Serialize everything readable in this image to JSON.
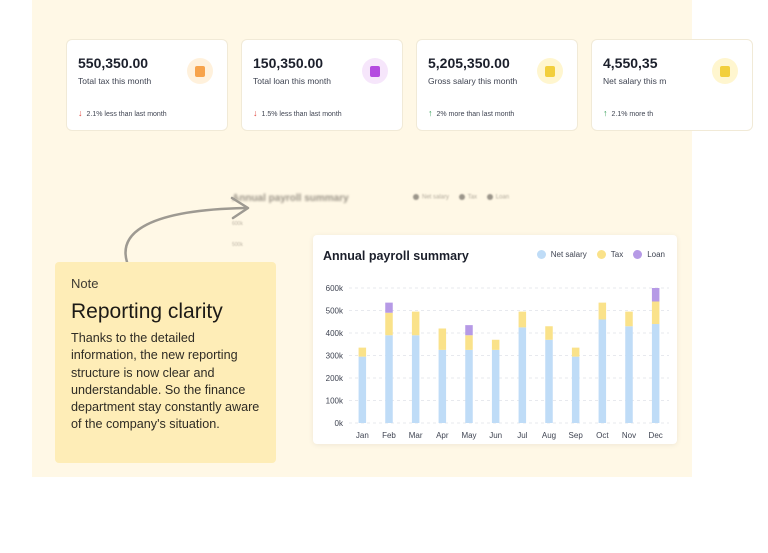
{
  "cards": [
    {
      "value": "550,350.00",
      "label": "Total tax this month",
      "change": "2.1% less than last month",
      "direction": "down",
      "icon": "document-icon",
      "icon_color": "#f7a34b",
      "icon_bg": "#fff1dc"
    },
    {
      "value": "150,350.00",
      "label": "Total loan this month",
      "change": "1.5% less than last month",
      "direction": "down",
      "icon": "document-icon",
      "icon_color": "#b44ae0",
      "icon_bg": "#f6e6fb"
    },
    {
      "value": "5,205,350.00",
      "label": "Gross salary this month",
      "change": "2% more than last month",
      "direction": "up",
      "icon": "document-icon",
      "icon_color": "#f2cf3c",
      "icon_bg": "#fff6cf"
    },
    {
      "value": "4,550,35",
      "label": "Net salary this m",
      "change": "2.1% more th",
      "direction": "up",
      "icon": "document-icon",
      "icon_color": "#f2cf3c",
      "icon_bg": "#fff6cf"
    }
  ],
  "arrows": {
    "down": "↓",
    "up": "↑",
    "down_color": "#e0473f",
    "up_color": "#2e9b52"
  },
  "background_chart": {
    "title": "Annual payroll summary",
    "legend": [
      "Net salary",
      "Tax",
      "Loan"
    ],
    "ticks": [
      "600k",
      "500k",
      "400k"
    ]
  },
  "note": {
    "tag": "Note",
    "heading": "Reporting clarity",
    "body": "Thanks to the detailed information, the new reporting structure is now clear and understandable. So the finance department stay constantly aware of the company's situation."
  },
  "chart_data": {
    "type": "bar",
    "stacked": true,
    "title": "Annual payroll summary",
    "categories": [
      "Jan",
      "Feb",
      "Mar",
      "Apr",
      "May",
      "Jun",
      "Jul",
      "Aug",
      "Sep",
      "Oct",
      "Nov",
      "Dec"
    ],
    "series": [
      {
        "name": "Net salary",
        "color": "#bfdcf7",
        "values": [
          295,
          390,
          390,
          325,
          325,
          325,
          425,
          370,
          295,
          460,
          430,
          440
        ]
      },
      {
        "name": "Tax",
        "color": "#fae28a",
        "values": [
          40,
          100,
          105,
          95,
          65,
          45,
          70,
          60,
          40,
          75,
          65,
          100
        ]
      },
      {
        "name": "Loan",
        "color": "#b69ae6",
        "values": [
          0,
          45,
          0,
          0,
          45,
          0,
          0,
          0,
          0,
          0,
          0,
          60
        ]
      }
    ],
    "y_ticks": [
      "0k",
      "100k",
      "200k",
      "300k",
      "400k",
      "500k",
      "600k"
    ],
    "ylim": [
      0,
      600
    ],
    "grid": true,
    "legend_position": "top-right"
  }
}
